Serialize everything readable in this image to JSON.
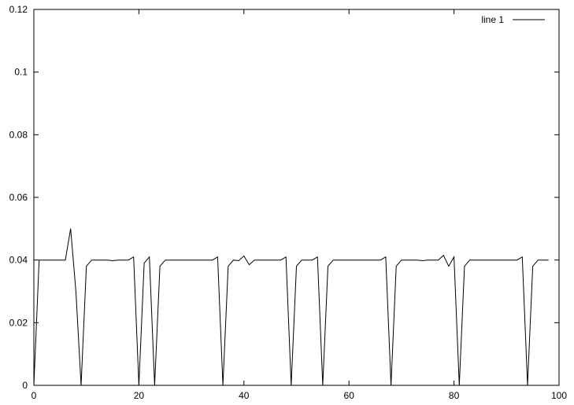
{
  "chart_data": {
    "type": "line",
    "title": "",
    "xlabel": "",
    "ylabel": "",
    "xlim": [
      0,
      100
    ],
    "ylim": [
      0,
      0.12
    ],
    "xticks": [
      0,
      20,
      40,
      60,
      80,
      100
    ],
    "yticks": [
      0,
      0.02,
      0.04,
      0.06,
      0.08,
      0.1,
      0.12
    ],
    "xtick_labels": [
      "0",
      "20",
      "40",
      "60",
      "80",
      "100"
    ],
    "ytick_labels": [
      "0",
      "0.02",
      "0.04",
      "0.06",
      "0.08",
      "0.1",
      "0.12"
    ],
    "grid": false,
    "legend_placement": "top-right",
    "line_color": "#000000",
    "series": [
      {
        "name": "line 1",
        "x": [
          0,
          1,
          2,
          3,
          4,
          5,
          6,
          7,
          8,
          9,
          10,
          11,
          12,
          13,
          14,
          15,
          16,
          17,
          18,
          19,
          20,
          21,
          22,
          23,
          24,
          25,
          26,
          27,
          28,
          29,
          30,
          31,
          32,
          33,
          34,
          35,
          36,
          37,
          38,
          39,
          40,
          41,
          42,
          43,
          44,
          45,
          46,
          47,
          48,
          49,
          50,
          51,
          52,
          53,
          54,
          55,
          56,
          57,
          58,
          59,
          60,
          61,
          62,
          63,
          64,
          65,
          66,
          67,
          68,
          69,
          70,
          71,
          72,
          73,
          74,
          75,
          76,
          77,
          78,
          79,
          80,
          81,
          82,
          83,
          84,
          85,
          86,
          87,
          88,
          89,
          90,
          91,
          92,
          93,
          94,
          95,
          96,
          97,
          98
        ],
        "y": [
          0,
          0.04,
          0.04,
          0.04,
          0.04,
          0.04,
          0.04,
          0.05,
          0.03,
          0,
          0.038,
          0.04,
          0.04,
          0.04,
          0.04,
          0.0398,
          0.04,
          0.04,
          0.04,
          0.041,
          0,
          0.039,
          0.041,
          0,
          0.038,
          0.04,
          0.04,
          0.04,
          0.04,
          0.04,
          0.04,
          0.04,
          0.04,
          0.04,
          0.04,
          0.041,
          0,
          0.038,
          0.04,
          0.0398,
          0.0413,
          0.0385,
          0.04,
          0.04,
          0.04,
          0.04,
          0.04,
          0.04,
          0.041,
          0,
          0.038,
          0.04,
          0.04,
          0.04,
          0.041,
          0,
          0.038,
          0.04,
          0.04,
          0.04,
          0.04,
          0.04,
          0.04,
          0.04,
          0.04,
          0.04,
          0.04,
          0.041,
          0,
          0.038,
          0.04,
          0.04,
          0.04,
          0.04,
          0.0398,
          0.04,
          0.04,
          0.04,
          0.0415,
          0.038,
          0.041,
          0,
          0.038,
          0.04,
          0.04,
          0.04,
          0.04,
          0.04,
          0.04,
          0.04,
          0.04,
          0.04,
          0.04,
          0.041,
          0,
          0.038,
          0.04,
          0.04,
          0.04
        ]
      }
    ]
  }
}
